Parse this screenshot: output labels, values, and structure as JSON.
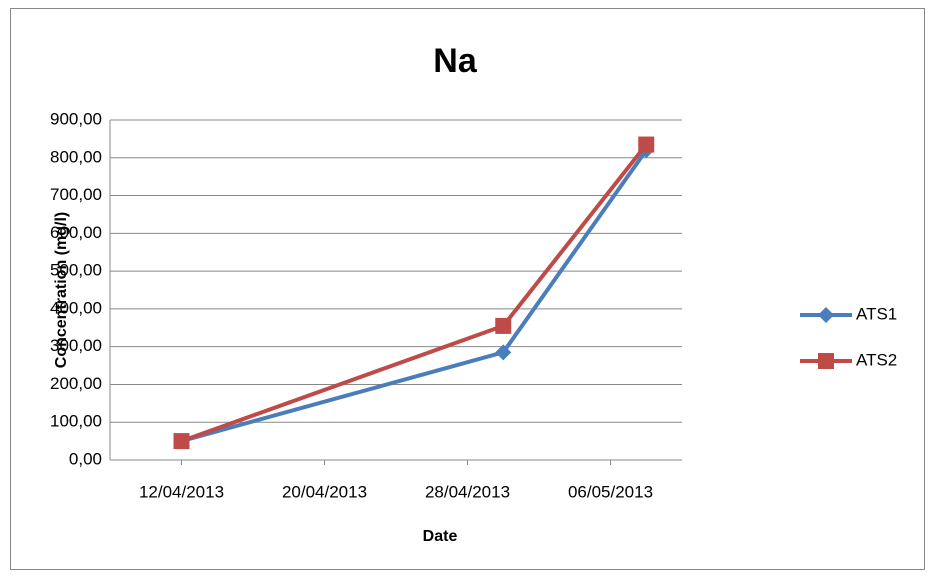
{
  "chart_data": {
    "type": "line",
    "title": "Na",
    "x_label": "Date",
    "y_label": "Concentration (mg/l)",
    "x": [
      "12/04/2013",
      "30/04/2013",
      "08/05/2013"
    ],
    "xlim": [
      "08/04/2013",
      "10/05/2013"
    ],
    "xticks": [
      "12/04/2013",
      "20/04/2013",
      "28/04/2013",
      "06/05/2013"
    ],
    "series": [
      {
        "name": "ATS1",
        "color": "#4a7ebb",
        "marker": "diamond",
        "values": [
          50,
          285,
          820
        ]
      },
      {
        "name": "ATS2",
        "color": "#be4b48",
        "marker": "square",
        "values": [
          50,
          355,
          835
        ]
      }
    ],
    "ylim": [
      0,
      900
    ],
    "yticks": [
      {
        "value": 0,
        "label": "0,00"
      },
      {
        "value": 100,
        "label": "100,00"
      },
      {
        "value": 200,
        "label": "200,00"
      },
      {
        "value": 300,
        "label": "300,00"
      },
      {
        "value": 400,
        "label": "400,00"
      },
      {
        "value": 500,
        "label": "500,00"
      },
      {
        "value": 600,
        "label": "600,00"
      },
      {
        "value": 700,
        "label": "700,00"
      },
      {
        "value": 800,
        "label": "800,00"
      },
      {
        "value": 900,
        "label": "900,00"
      }
    ],
    "grid": true,
    "legend": "right"
  }
}
